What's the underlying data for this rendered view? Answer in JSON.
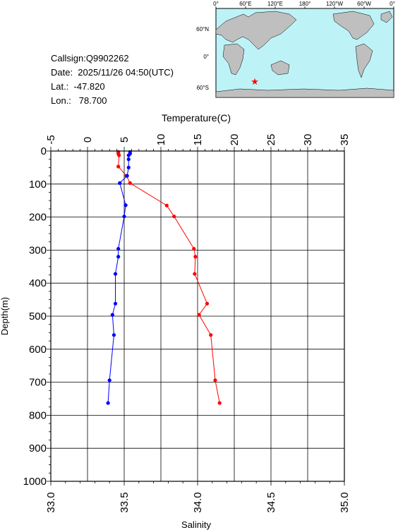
{
  "info": {
    "callsign": "Callsign:Q9902262",
    "date": "Date:  2025/11/26 04:50(UTC)",
    "lat": "Lat.:  -47.820",
    "lon": "Lon.:   78.700"
  },
  "map": {
    "lon_labels": [
      "0°",
      "60°E",
      "120°E",
      "180°",
      "120°W",
      "60°W",
      "0°"
    ],
    "lat_labels": [
      "60°N",
      "0°",
      "60°S"
    ],
    "ocean_color": "#bdf3f7",
    "land_color": "#bfbfbf",
    "marker_color": "#ff0000",
    "marker": {
      "lon": 78.7,
      "lat": -47.82
    }
  },
  "chart_data": {
    "type": "line",
    "ylabel": "Depth(m)",
    "top_axis_label": "Temperature(C)",
    "bottom_axis_label": "Salinity",
    "ylim": [
      0,
      1000
    ],
    "y_ticks": [
      "0",
      "100",
      "200",
      "300",
      "400",
      "500",
      "600",
      "700",
      "800",
      "900",
      "1000"
    ],
    "temperature_range": [
      -5,
      35
    ],
    "temperature_ticks": [
      "-5",
      "0",
      "5",
      "10",
      "15",
      "20",
      "25",
      "30",
      "35"
    ],
    "salinity_range": [
      33.0,
      35.0
    ],
    "salinity_ticks": [
      "33.0",
      "33.5",
      "34.0",
      "34.5",
      "35.0"
    ],
    "grid": true,
    "series": [
      {
        "color": "#ff0000",
        "axis": "temperature",
        "points": [
          [
            4.2,
            3
          ],
          [
            4.2,
            8
          ],
          [
            4.3,
            13
          ],
          [
            4.2,
            47
          ],
          [
            5.3,
            75
          ],
          [
            5.8,
            97
          ],
          [
            10.8,
            165
          ],
          [
            11.8,
            198
          ],
          [
            14.5,
            296
          ],
          [
            14.7,
            320
          ],
          [
            14.6,
            372
          ],
          [
            16.3,
            462
          ],
          [
            15.2,
            496
          ],
          [
            16.8,
            557
          ],
          [
            17.4,
            694
          ],
          [
            18.0,
            763
          ]
        ]
      },
      {
        "color": "#0000ff",
        "axis": "salinity",
        "points": [
          [
            33.54,
            3
          ],
          [
            33.54,
            8
          ],
          [
            33.53,
            13
          ],
          [
            33.53,
            25
          ],
          [
            33.53,
            50
          ],
          [
            33.52,
            75
          ],
          [
            33.47,
            97
          ],
          [
            33.51,
            164
          ],
          [
            33.5,
            198
          ],
          [
            33.46,
            296
          ],
          [
            33.46,
            320
          ],
          [
            33.44,
            372
          ],
          [
            33.44,
            462
          ],
          [
            33.42,
            496
          ],
          [
            33.43,
            557
          ],
          [
            33.4,
            694
          ],
          [
            33.39,
            763
          ]
        ]
      }
    ]
  }
}
